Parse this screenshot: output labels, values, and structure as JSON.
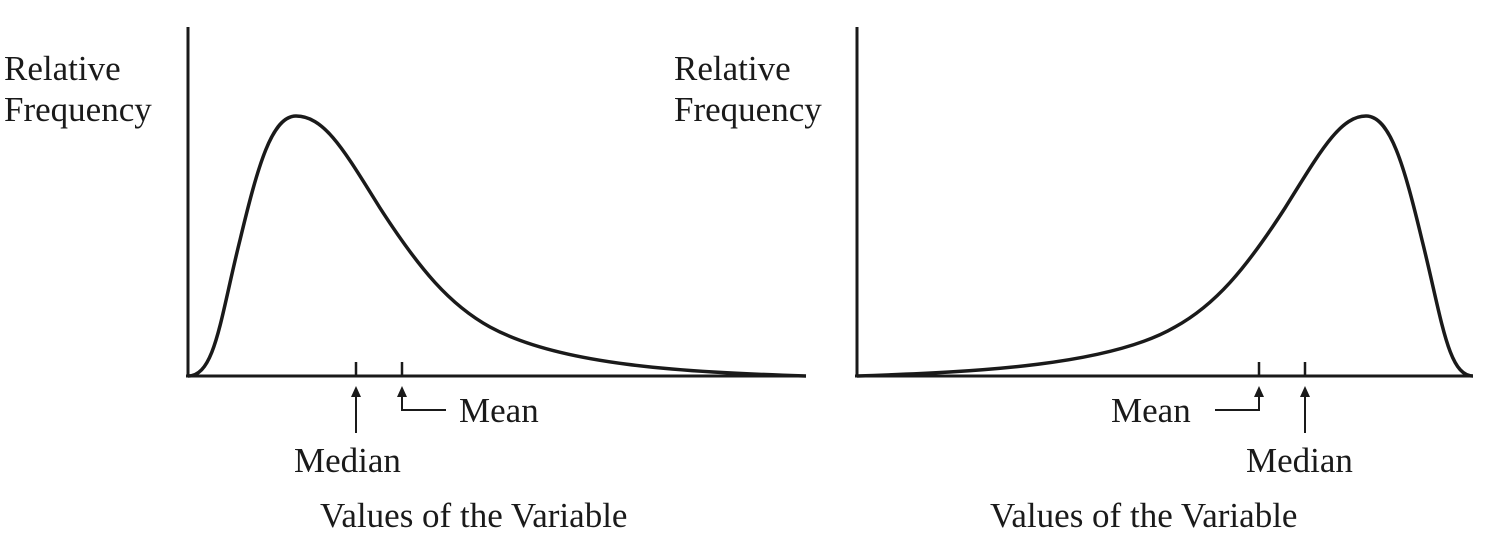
{
  "figure": {
    "colors": {
      "stroke": "#1a1a1a",
      "background": "#ffffff"
    },
    "panels": [
      {
        "skew": "right",
        "ylabel_line1": "Relative",
        "ylabel_line2": "Frequency",
        "xlabel": "Values of the Variable",
        "median_label": "Median",
        "mean_label": "Mean",
        "marker_order": [
          "Median",
          "Mean"
        ]
      },
      {
        "skew": "left",
        "ylabel_line1": "Relative",
        "ylabel_line2": "Frequency",
        "xlabel": "Values of the Variable",
        "median_label": "Median",
        "mean_label": "Mean",
        "marker_order": [
          "Mean",
          "Median"
        ]
      }
    ]
  }
}
